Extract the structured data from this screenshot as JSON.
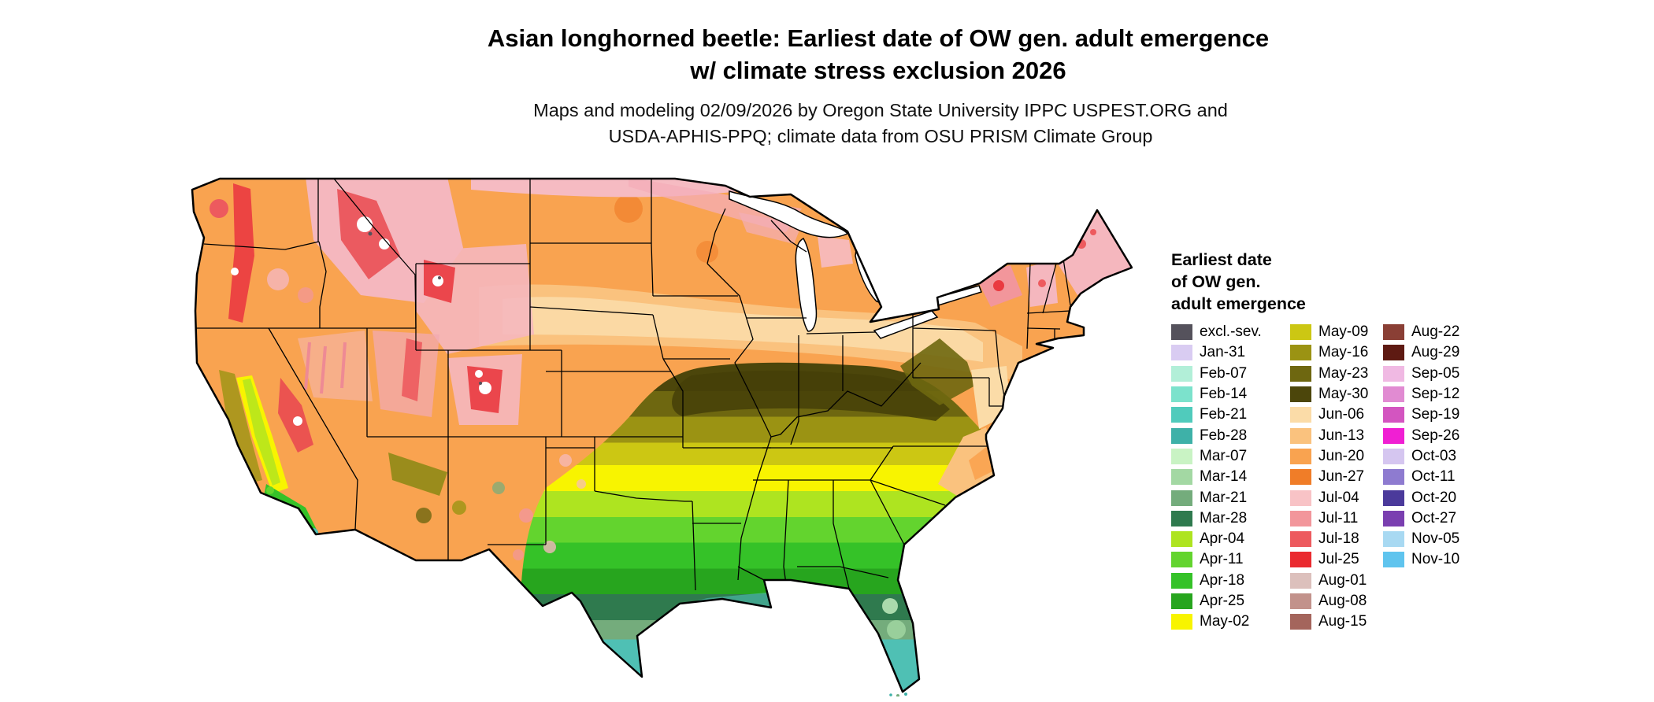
{
  "page": {
    "background": "#FFFFFF",
    "outline_color": "#000000"
  },
  "title": {
    "line1": "Asian longhorned beetle: Earliest date of OW gen. adult emergence",
    "line2": "w/ climate stress exclusion 2026"
  },
  "subtitle": {
    "line1": "Maps and modeling 02/09/2026 by Oregon State University IPPC USPEST.ORG and",
    "line2": "USDA-APHIS-PPQ; climate data from OSU PRISM Climate Group"
  },
  "legend": {
    "title_lines": [
      "Earliest date",
      "of OW gen.",
      "adult emergence"
    ],
    "columns": [
      {
        "entries": [
          {
            "label": "excl.-sev.",
            "color": "#55525C"
          },
          {
            "label": "Jan-31",
            "color": "#D9CCF2"
          },
          {
            "label": "Feb-07",
            "color": "#B2EFD8"
          },
          {
            "label": "Feb-14",
            "color": "#7CE2CC"
          },
          {
            "label": "Feb-21",
            "color": "#50CBBC"
          },
          {
            "label": "Feb-28",
            "color": "#3EB1A8"
          },
          {
            "label": "Mar-07",
            "color": "#C9F3C4"
          },
          {
            "label": "Mar-14",
            "color": "#A3D8A3"
          },
          {
            "label": "Mar-21",
            "color": "#74AC7C"
          },
          {
            "label": "Mar-28",
            "color": "#2F7A4E"
          },
          {
            "label": "Apr-04",
            "color": "#AEE420"
          },
          {
            "label": "Apr-11",
            "color": "#63D42E"
          },
          {
            "label": "Apr-18",
            "color": "#35C228"
          },
          {
            "label": "Apr-25",
            "color": "#27A51E"
          },
          {
            "label": "May-02",
            "color": "#F8F400"
          }
        ]
      },
      {
        "entries": [
          {
            "label": "May-09",
            "color": "#CCC713"
          },
          {
            "label": "May-16",
            "color": "#9B9313"
          },
          {
            "label": "May-23",
            "color": "#6E6710"
          },
          {
            "label": "May-30",
            "color": "#4C460B"
          },
          {
            "label": "Jun-06",
            "color": "#FBDCA8"
          },
          {
            "label": "Jun-13",
            "color": "#FAC27E"
          },
          {
            "label": "Jun-20",
            "color": "#F9A350"
          },
          {
            "label": "Jun-27",
            "color": "#F07D28"
          },
          {
            "label": "Jul-04",
            "color": "#F8C3C6"
          },
          {
            "label": "Jul-11",
            "color": "#F2969B"
          },
          {
            "label": "Jul-18",
            "color": "#ED5A5E"
          },
          {
            "label": "Jul-25",
            "color": "#EA2A2F"
          },
          {
            "label": "Aug-01",
            "color": "#DCC0BC"
          },
          {
            "label": "Aug-08",
            "color": "#C2928B"
          },
          {
            "label": "Aug-15",
            "color": "#A4655C"
          }
        ]
      },
      {
        "entries": [
          {
            "label": "Aug-22",
            "color": "#8A3F35"
          },
          {
            "label": "Aug-29",
            "color": "#5E1A12"
          },
          {
            "label": "Sep-05",
            "color": "#F0B9E3"
          },
          {
            "label": "Sep-12",
            "color": "#E18BD2"
          },
          {
            "label": "Sep-19",
            "color": "#D355C0"
          },
          {
            "label": "Sep-26",
            "color": "#F01FD3"
          },
          {
            "label": "Oct-03",
            "color": "#D5C6F0"
          },
          {
            "label": "Oct-11",
            "color": "#8E7BD0"
          },
          {
            "label": "Oct-20",
            "color": "#4B3A9B"
          },
          {
            "label": "Oct-27",
            "color": "#7A3FB0"
          },
          {
            "label": "Nov-05",
            "color": "#A8D9F2"
          },
          {
            "label": "Nov-10",
            "color": "#5FC4EE"
          }
        ]
      }
    ]
  }
}
